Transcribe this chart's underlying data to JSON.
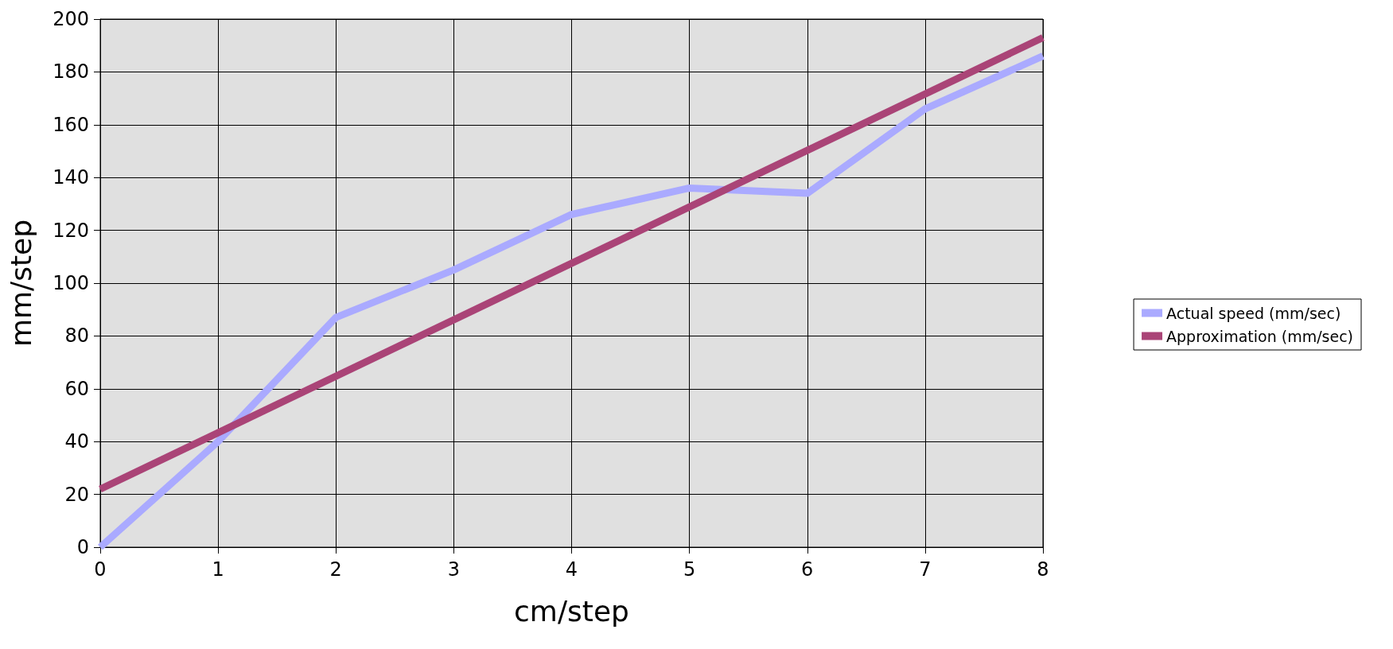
{
  "chart_data": {
    "type": "line",
    "xlabel": "cm/step",
    "ylabel": "mm/step",
    "x": [
      0,
      1,
      2,
      3,
      4,
      5,
      6,
      7,
      8
    ],
    "series": [
      {
        "name": "Actual speed (mm/sec)",
        "color": "#aaaaff",
        "values": [
          0,
          40,
          87,
          105,
          126,
          136,
          134,
          166,
          186
        ]
      },
      {
        "name": "Approximation (mm/sec)",
        "color": "#aa4477",
        "x": [
          0,
          8
        ],
        "values": [
          22,
          193
        ]
      }
    ],
    "xlim": [
      0,
      8
    ],
    "xticks": [
      0,
      1,
      2,
      3,
      4,
      5,
      6,
      7,
      8
    ],
    "ylim": [
      0,
      200
    ],
    "yticks": [
      0,
      20,
      40,
      60,
      80,
      100,
      120,
      140,
      160,
      180,
      200
    ],
    "grid": true,
    "legend": "right",
    "marker": "none",
    "line_style": "solid"
  }
}
